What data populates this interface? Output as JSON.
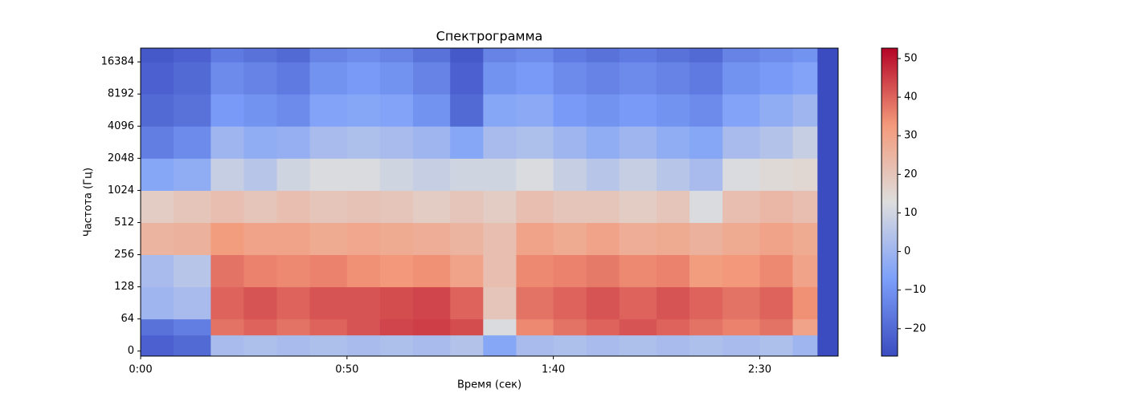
{
  "chart_data": {
    "type": "heatmap",
    "title": "Спектрограмма",
    "x_label": "Время (сек)",
    "y_label": "Частота (Гц)",
    "xlim": [
      0,
      169
    ],
    "ylim": [
      -10,
      22050
    ],
    "yscale": "symlog",
    "linthresh": 64,
    "colormap": "coolwarm",
    "clim": [
      -27.1,
      52.7
    ],
    "xticks": [
      {
        "value": 0,
        "label": "0:00"
      },
      {
        "value": 50,
        "label": "0:50"
      },
      {
        "value": 100,
        "label": "1:40"
      },
      {
        "value": 150,
        "label": "2:30"
      }
    ],
    "yticks": [
      0,
      64,
      128,
      256,
      512,
      1024,
      2048,
      4096,
      8192,
      16384
    ],
    "cticks": [
      {
        "value": -20,
        "label": "−20"
      },
      {
        "value": -10,
        "label": "−10"
      },
      0,
      10,
      20,
      30,
      40,
      50
    ],
    "x_edges": [
      0,
      8,
      17,
      25,
      33,
      41,
      50,
      58,
      66,
      75,
      83,
      91,
      100,
      108,
      116,
      125,
      133,
      141,
      150,
      158,
      164,
      169
    ],
    "y_edges": [
      -10,
      32,
      64,
      128,
      256,
      512,
      1024,
      2048,
      4096,
      8192,
      16384,
      22050
    ],
    "z": [
      [
        -22,
        -20,
        2,
        3,
        2,
        3,
        2,
        3,
        2,
        4,
        -5,
        2,
        3,
        2,
        3,
        2,
        3,
        2,
        3,
        0,
        -27
      ],
      [
        -18,
        -15,
        38,
        40,
        38,
        40,
        42,
        44,
        45,
        43,
        12,
        35,
        38,
        40,
        42,
        40,
        38,
        36,
        38,
        30,
        -27
      ],
      [
        0,
        2,
        40,
        42,
        40,
        42,
        42,
        43,
        44,
        40,
        20,
        38,
        40,
        42,
        40,
        42,
        40,
        38,
        40,
        34,
        -27
      ],
      [
        2,
        5,
        38,
        36,
        35,
        36,
        34,
        33,
        34,
        30,
        22,
        35,
        36,
        37,
        35,
        36,
        32,
        33,
        35,
        30,
        -27
      ],
      [
        25,
        26,
        32,
        30,
        30,
        28,
        29,
        28,
        27,
        25,
        22,
        30,
        28,
        30,
        27,
        28,
        26,
        28,
        30,
        28,
        -27
      ],
      [
        18,
        20,
        22,
        20,
        22,
        20,
        21,
        20,
        18,
        20,
        18,
        22,
        20,
        20,
        18,
        20,
        12,
        22,
        24,
        22,
        -27
      ],
      [
        -5,
        -3,
        8,
        5,
        10,
        12,
        12,
        10,
        8,
        10,
        10,
        12,
        8,
        5,
        8,
        5,
        2,
        12,
        14,
        15,
        -27
      ],
      [
        -15,
        -12,
        0,
        -3,
        -2,
        2,
        3,
        2,
        0,
        -5,
        2,
        3,
        0,
        -3,
        0,
        -3,
        -5,
        2,
        4,
        8,
        -27
      ],
      [
        -20,
        -18,
        -8,
        -10,
        -12,
        -6,
        -5,
        -6,
        -10,
        -20,
        -5,
        -4,
        -8,
        -10,
        -8,
        -10,
        -12,
        -6,
        -3,
        0,
        -27
      ],
      [
        -22,
        -20,
        -12,
        -14,
        -16,
        -10,
        -8,
        -10,
        -14,
        -22,
        -10,
        -8,
        -12,
        -14,
        -12,
        -14,
        -16,
        -10,
        -8,
        -6,
        -27
      ],
      [
        -24,
        -22,
        -16,
        -18,
        -20,
        -14,
        -12,
        -14,
        -18,
        -24,
        -14,
        -12,
        -16,
        -18,
        -16,
        -18,
        -20,
        -14,
        -12,
        -10,
        -27
      ]
    ]
  }
}
